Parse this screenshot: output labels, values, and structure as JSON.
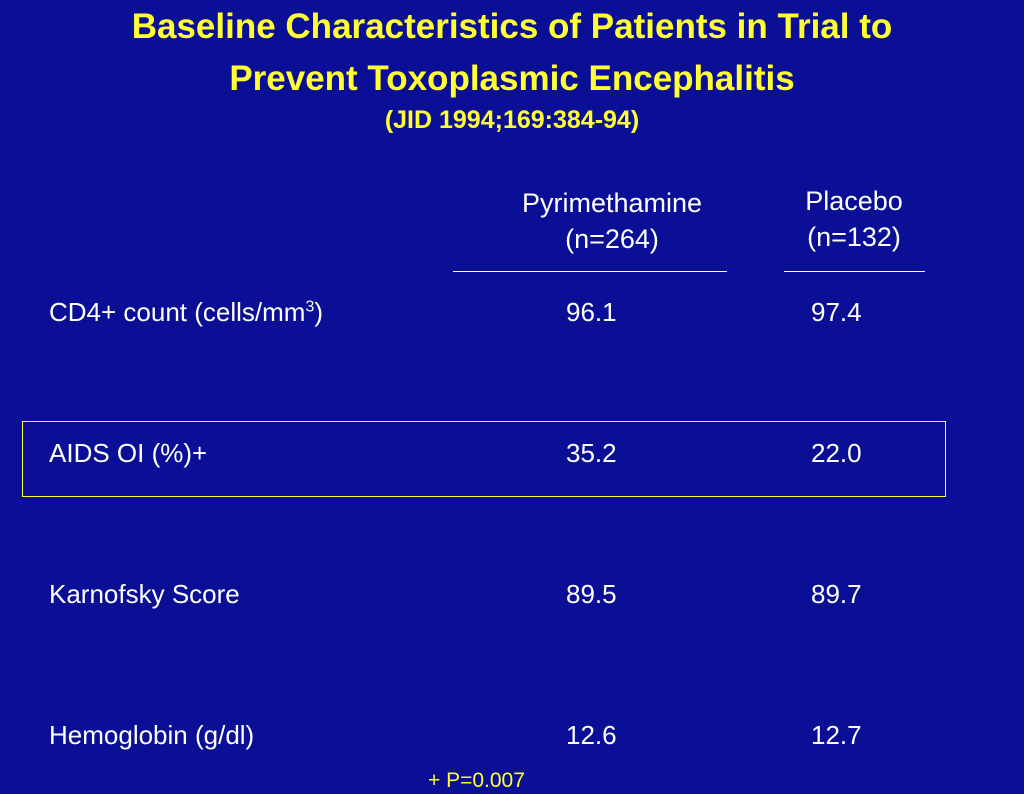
{
  "slide": {
    "title_line1": "Baseline Characteristics of Patients in Trial to",
    "title_line2": "Prevent Toxoplasmic Encephalitis",
    "citation": "(JID 1994;169:384-94)"
  },
  "columns": [
    {
      "name": "Pyrimethamine",
      "n": "(n=264)"
    },
    {
      "name": "Placebo",
      "n": "(n=132)"
    }
  ],
  "rows": [
    {
      "label": "CD4+ count (cells/mm",
      "label_sup": "3",
      "label_suffix": ")",
      "pyrimethamine": "96.1",
      "placebo": "97.4"
    },
    {
      "label": "AIDS OI (%)+",
      "pyrimethamine": "35.2",
      "placebo": "22.0",
      "highlighted": true
    },
    {
      "label": "Karnofsky Score",
      "pyrimethamine": "89.5",
      "placebo": "89.7"
    },
    {
      "label": "Hemoglobin (g/dl)",
      "pyrimethamine": "12.6",
      "placebo": "12.7"
    }
  ],
  "footnote": "+ P=0.007",
  "colors": {
    "background": "#0a0f95",
    "title": "#ffff33",
    "text": "#ffffff",
    "highlight_border": "#ffff33"
  }
}
